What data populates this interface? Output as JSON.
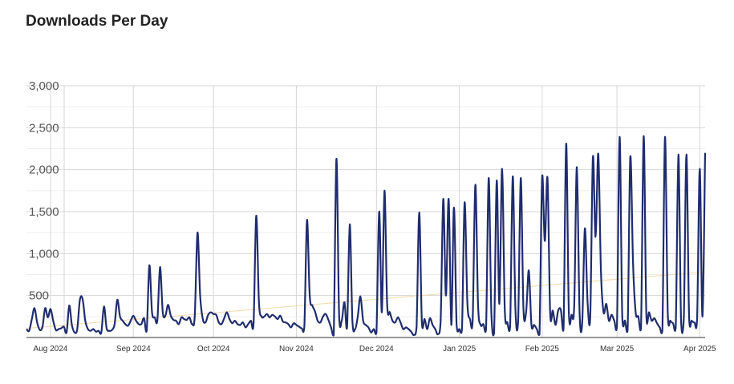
{
  "page_title": "Downloads Per Day",
  "chart_data": {
    "type": "line",
    "title": "Downloads Per Day",
    "xlabel": "",
    "ylabel": "",
    "ylim": [
      0,
      3000
    ],
    "y_ticks": [
      {
        "value": 500,
        "label": "500"
      },
      {
        "value": 1000,
        "label": "1,000"
      },
      {
        "value": 1500,
        "label": "1,500"
      },
      {
        "value": 2000,
        "label": "2,000"
      },
      {
        "value": 2500,
        "label": "2,500"
      },
      {
        "value": 3000,
        "label": "3,000"
      }
    ],
    "x_range": [
      "2024-07-23",
      "2025-04-03"
    ],
    "x_ticks": [
      {
        "date": "2024-08-01",
        "label": "Aug 2024"
      },
      {
        "date": "2024-09-01",
        "label": "Sep 2024"
      },
      {
        "date": "2024-10-01",
        "label": "Oct 2024"
      },
      {
        "date": "2024-11-01",
        "label": "Nov 2024"
      },
      {
        "date": "2024-12-01",
        "label": "Dec 2024"
      },
      {
        "date": "2025-01-01",
        "label": "Jan 2025"
      },
      {
        "date": "2025-02-01",
        "label": "Feb 2025"
      },
      {
        "date": "2025-03-01",
        "label": "Mar 2025"
      },
      {
        "date": "2025-04-01",
        "label": "Apr 2025"
      }
    ],
    "grid": true,
    "legend": "none",
    "colors": {
      "series": "#1f2d6e",
      "trend": "#f5d9a8",
      "grid": "#dddddd"
    },
    "series": [
      {
        "values": [
          [
            "2024-07-23",
            100
          ],
          [
            "2024-07-24",
            80
          ],
          [
            "2024-07-25",
            220
          ],
          [
            "2024-07-26",
            350
          ],
          [
            "2024-07-27",
            180
          ],
          [
            "2024-07-28",
            90
          ],
          [
            "2024-07-29",
            130
          ],
          [
            "2024-07-30",
            350
          ],
          [
            "2024-07-31",
            240
          ],
          [
            "2024-08-01",
            340
          ],
          [
            "2024-08-02",
            200
          ],
          [
            "2024-08-03",
            90
          ],
          [
            "2024-08-04",
            100
          ],
          [
            "2024-08-05",
            110
          ],
          [
            "2024-08-06",
            130
          ],
          [
            "2024-08-07",
            60
          ],
          [
            "2024-08-08",
            380
          ],
          [
            "2024-08-09",
            150
          ],
          [
            "2024-08-10",
            60
          ],
          [
            "2024-08-11",
            100
          ],
          [
            "2024-08-12",
            450
          ],
          [
            "2024-08-13",
            460
          ],
          [
            "2024-08-14",
            200
          ],
          [
            "2024-08-15",
            100
          ],
          [
            "2024-08-16",
            80
          ],
          [
            "2024-08-17",
            100
          ],
          [
            "2024-08-18",
            70
          ],
          [
            "2024-08-19",
            80
          ],
          [
            "2024-08-20",
            60
          ],
          [
            "2024-08-21",
            370
          ],
          [
            "2024-08-22",
            110
          ],
          [
            "2024-08-23",
            80
          ],
          [
            "2024-08-24",
            90
          ],
          [
            "2024-08-25",
            160
          ],
          [
            "2024-08-26",
            450
          ],
          [
            "2024-08-27",
            250
          ],
          [
            "2024-08-28",
            200
          ],
          [
            "2024-08-29",
            160
          ],
          [
            "2024-08-30",
            140
          ],
          [
            "2024-08-31",
            200
          ],
          [
            "2024-09-01",
            260
          ],
          [
            "2024-09-02",
            200
          ],
          [
            "2024-09-03",
            160
          ],
          [
            "2024-09-04",
            160
          ],
          [
            "2024-09-05",
            230
          ],
          [
            "2024-09-06",
            90
          ],
          [
            "2024-09-07",
            860
          ],
          [
            "2024-09-08",
            300
          ],
          [
            "2024-09-09",
            240
          ],
          [
            "2024-09-10",
            210
          ],
          [
            "2024-09-11",
            840
          ],
          [
            "2024-09-12",
            300
          ],
          [
            "2024-09-13",
            260
          ],
          [
            "2024-09-14",
            390
          ],
          [
            "2024-09-15",
            260
          ],
          [
            "2024-09-16",
            210
          ],
          [
            "2024-09-17",
            200
          ],
          [
            "2024-09-18",
            160
          ],
          [
            "2024-09-19",
            240
          ],
          [
            "2024-09-20",
            220
          ],
          [
            "2024-09-21",
            210
          ],
          [
            "2024-09-22",
            240
          ],
          [
            "2024-09-23",
            160
          ],
          [
            "2024-09-24",
            260
          ],
          [
            "2024-09-25",
            1250
          ],
          [
            "2024-09-26",
            500
          ],
          [
            "2024-09-27",
            220
          ],
          [
            "2024-09-28",
            180
          ],
          [
            "2024-09-29",
            270
          ],
          [
            "2024-09-30",
            300
          ],
          [
            "2024-10-01",
            280
          ],
          [
            "2024-10-02",
            270
          ],
          [
            "2024-10-03",
            180
          ],
          [
            "2024-10-04",
            160
          ],
          [
            "2024-10-05",
            230
          ],
          [
            "2024-10-06",
            300
          ],
          [
            "2024-10-07",
            220
          ],
          [
            "2024-10-08",
            170
          ],
          [
            "2024-10-09",
            200
          ],
          [
            "2024-10-10",
            160
          ],
          [
            "2024-10-11",
            150
          ],
          [
            "2024-10-12",
            180
          ],
          [
            "2024-10-13",
            120
          ],
          [
            "2024-10-14",
            160
          ],
          [
            "2024-10-15",
            200
          ],
          [
            "2024-10-16",
            170
          ],
          [
            "2024-10-17",
            1450
          ],
          [
            "2024-10-18",
            420
          ],
          [
            "2024-10-19",
            250
          ],
          [
            "2024-10-20",
            250
          ],
          [
            "2024-10-21",
            280
          ],
          [
            "2024-10-22",
            240
          ],
          [
            "2024-10-23",
            270
          ],
          [
            "2024-10-24",
            250
          ],
          [
            "2024-10-25",
            220
          ],
          [
            "2024-10-26",
            260
          ],
          [
            "2024-10-27",
            190
          ],
          [
            "2024-10-28",
            180
          ],
          [
            "2024-10-29",
            160
          ],
          [
            "2024-10-30",
            120
          ],
          [
            "2024-10-31",
            170
          ],
          [
            "2024-11-01",
            150
          ],
          [
            "2024-11-02",
            130
          ],
          [
            "2024-11-03",
            110
          ],
          [
            "2024-11-04",
            130
          ],
          [
            "2024-11-05",
            1400
          ],
          [
            "2024-11-06",
            500
          ],
          [
            "2024-11-07",
            380
          ],
          [
            "2024-11-08",
            310
          ],
          [
            "2024-11-09",
            200
          ],
          [
            "2024-11-10",
            180
          ],
          [
            "2024-11-11",
            250
          ],
          [
            "2024-11-12",
            280
          ],
          [
            "2024-11-13",
            210
          ],
          [
            "2024-11-14",
            120
          ],
          [
            "2024-11-15",
            30
          ],
          [
            "2024-11-16",
            2130
          ],
          [
            "2024-11-17",
            280
          ],
          [
            "2024-11-18",
            200
          ],
          [
            "2024-11-19",
            420
          ],
          [
            "2024-11-20",
            130
          ],
          [
            "2024-11-21",
            1350
          ],
          [
            "2024-11-22",
            200
          ],
          [
            "2024-11-23",
            100
          ],
          [
            "2024-11-24",
            250
          ],
          [
            "2024-11-25",
            490
          ],
          [
            "2024-11-26",
            200
          ],
          [
            "2024-11-27",
            150
          ],
          [
            "2024-11-28",
            120
          ],
          [
            "2024-11-29",
            60
          ],
          [
            "2024-11-30",
            100
          ],
          [
            "2024-12-01",
            60
          ],
          [
            "2024-12-02",
            1500
          ],
          [
            "2024-12-03",
            300
          ],
          [
            "2024-12-04",
            1750
          ],
          [
            "2024-12-05",
            400
          ],
          [
            "2024-12-06",
            300
          ],
          [
            "2024-12-07",
            200
          ],
          [
            "2024-12-08",
            180
          ],
          [
            "2024-12-09",
            240
          ],
          [
            "2024-12-10",
            180
          ],
          [
            "2024-12-11",
            100
          ],
          [
            "2024-12-12",
            120
          ],
          [
            "2024-12-13",
            100
          ],
          [
            "2024-12-14",
            70
          ],
          [
            "2024-12-15",
            30
          ],
          [
            "2024-12-16",
            130
          ],
          [
            "2024-12-17",
            1490
          ],
          [
            "2024-12-18",
            180
          ],
          [
            "2024-12-19",
            220
          ],
          [
            "2024-12-20",
            100
          ],
          [
            "2024-12-21",
            230
          ],
          [
            "2024-12-22",
            150
          ],
          [
            "2024-12-23",
            100
          ],
          [
            "2024-12-24",
            40
          ],
          [
            "2024-12-25",
            190
          ],
          [
            "2024-12-26",
            1650
          ],
          [
            "2024-12-27",
            500
          ],
          [
            "2024-12-28",
            1650
          ],
          [
            "2024-12-29",
            150
          ],
          [
            "2024-12-30",
            1550
          ],
          [
            "2024-12-31",
            150
          ],
          [
            "2025-01-01",
            100
          ],
          [
            "2025-01-02",
            100
          ],
          [
            "2025-01-03",
            1610
          ],
          [
            "2025-01-04",
            420
          ],
          [
            "2025-01-05",
            220
          ],
          [
            "2025-01-06",
            200
          ],
          [
            "2025-01-07",
            1820
          ],
          [
            "2025-01-08",
            400
          ],
          [
            "2025-01-09",
            150
          ],
          [
            "2025-01-10",
            160
          ],
          [
            "2025-01-11",
            100
          ],
          [
            "2025-01-12",
            1900
          ],
          [
            "2025-01-13",
            300
          ],
          [
            "2025-01-14",
            50
          ],
          [
            "2025-01-15",
            1870
          ],
          [
            "2025-01-16",
            400
          ],
          [
            "2025-01-17",
            2010
          ],
          [
            "2025-01-18",
            350
          ],
          [
            "2025-01-19",
            180
          ],
          [
            "2025-01-20",
            130
          ],
          [
            "2025-01-21",
            1920
          ],
          [
            "2025-01-22",
            350
          ],
          [
            "2025-01-23",
            200
          ],
          [
            "2025-01-24",
            1900
          ],
          [
            "2025-01-25",
            350
          ],
          [
            "2025-01-26",
            300
          ],
          [
            "2025-01-27",
            800
          ],
          [
            "2025-01-28",
            150
          ],
          [
            "2025-01-29",
            150
          ],
          [
            "2025-01-30",
            100
          ],
          [
            "2025-01-31",
            40
          ],
          [
            "2025-02-01",
            1910
          ],
          [
            "2025-02-02",
            1150
          ],
          [
            "2025-02-03",
            1900
          ],
          [
            "2025-02-04",
            300
          ],
          [
            "2025-02-05",
            320
          ],
          [
            "2025-02-06",
            150
          ],
          [
            "2025-02-07",
            320
          ],
          [
            "2025-02-08",
            330
          ],
          [
            "2025-02-09",
            100
          ],
          [
            "2025-02-10",
            2310
          ],
          [
            "2025-02-11",
            300
          ],
          [
            "2025-02-12",
            270
          ],
          [
            "2025-02-13",
            380
          ],
          [
            "2025-02-14",
            2030
          ],
          [
            "2025-02-15",
            300
          ],
          [
            "2025-02-16",
            180
          ],
          [
            "2025-02-17",
            1300
          ],
          [
            "2025-02-18",
            430
          ],
          [
            "2025-02-19",
            250
          ],
          [
            "2025-02-20",
            2150
          ],
          [
            "2025-02-21",
            1200
          ],
          [
            "2025-02-22",
            2190
          ],
          [
            "2025-02-23",
            800
          ],
          [
            "2025-02-24",
            300
          ],
          [
            "2025-02-25",
            400
          ],
          [
            "2025-02-26",
            200
          ],
          [
            "2025-02-27",
            270
          ],
          [
            "2025-02-28",
            200
          ],
          [
            "2025-03-01",
            140
          ],
          [
            "2025-03-02",
            2390
          ],
          [
            "2025-03-03",
            250
          ],
          [
            "2025-03-04",
            200
          ],
          [
            "2025-03-05",
            90
          ],
          [
            "2025-03-06",
            2150
          ],
          [
            "2025-03-07",
            900
          ],
          [
            "2025-03-08",
            300
          ],
          [
            "2025-03-09",
            250
          ],
          [
            "2025-03-10",
            120
          ],
          [
            "2025-03-11",
            2400
          ],
          [
            "2025-03-12",
            280
          ],
          [
            "2025-03-13",
            300
          ]
        ],
        "values_cont": [
          [
            "2025-03-14",
            200
          ],
          [
            "2025-03-15",
            230
          ],
          [
            "2025-03-16",
            170
          ],
          [
            "2025-03-17",
            120
          ],
          [
            "2025-03-18",
            80
          ],
          [
            "2025-03-19",
            2390
          ],
          [
            "2025-03-20",
            300
          ],
          [
            "2025-03-21",
            200
          ],
          [
            "2025-03-22",
            170
          ],
          [
            "2025-03-23",
            130
          ],
          [
            "2025-03-24",
            2180
          ],
          [
            "2025-03-25",
            200
          ],
          [
            "2025-03-26",
            220
          ],
          [
            "2025-03-27",
            2180
          ],
          [
            "2025-03-28",
            250
          ],
          [
            "2025-03-29",
            200
          ],
          [
            "2025-03-30",
            180
          ],
          [
            "2025-03-31",
            220
          ],
          [
            "2025-04-01",
            2010
          ],
          [
            "2025-04-02",
            250
          ],
          [
            "2025-04-03",
            2200
          ]
        ]
      }
    ]
  }
}
